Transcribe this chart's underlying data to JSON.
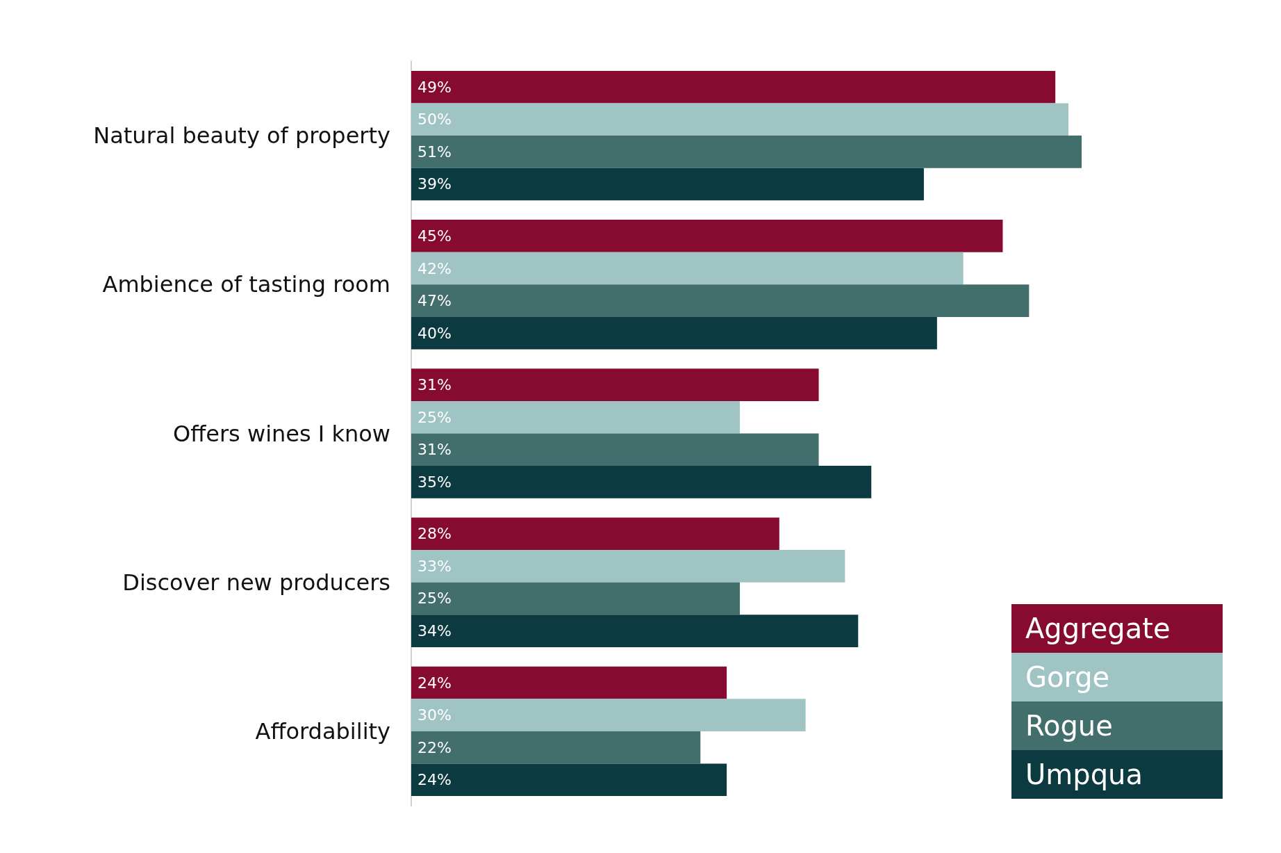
{
  "chart_data": {
    "type": "bar",
    "orientation": "horizontal",
    "legend": "bottom right",
    "categories": [
      "Natural beauty of property",
      "Ambience of tasting room",
      "Offers wines I know",
      "Discover new producers",
      "Affordability"
    ],
    "series": [
      {
        "name": "Aggregate",
        "color": "#870a30",
        "values": [
          49,
          45,
          31,
          28,
          24
        ],
        "value_labels": [
          "49%",
          "45%",
          "31%",
          "28%",
          "24%"
        ]
      },
      {
        "name": "Gorge",
        "color": "#9fc4c3",
        "values": [
          50,
          42,
          25,
          33,
          30
        ],
        "value_labels": [
          "50%",
          "42%",
          "25%",
          "33%",
          "30%"
        ]
      },
      {
        "name": "Rogue",
        "color": "#426e6c",
        "values": [
          51,
          47,
          31,
          25,
          22
        ],
        "value_labels": [
          "51%",
          "47%",
          "31%",
          "25%",
          "22%"
        ]
      },
      {
        "name": "Umpqua",
        "color": "#0b3a40",
        "values": [
          39,
          40,
          35,
          34,
          24
        ],
        "value_labels": [
          "39%",
          "40%",
          "35%",
          "34%",
          "24%"
        ]
      }
    ]
  }
}
